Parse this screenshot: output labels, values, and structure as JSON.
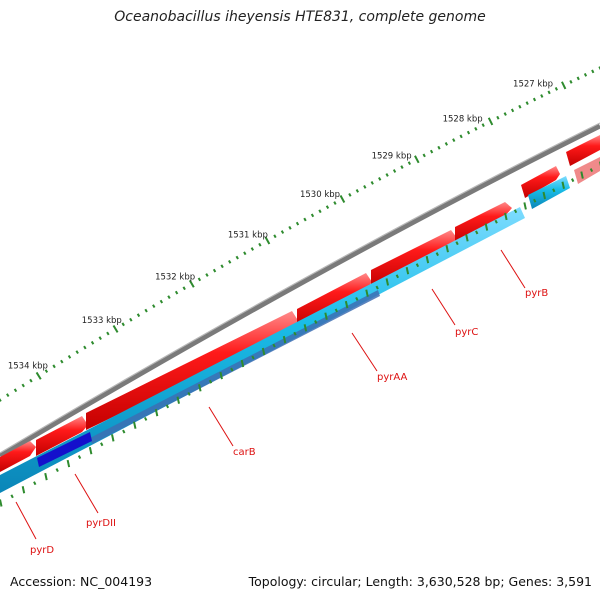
{
  "title": "Oceanobacillus iheyensis HTE831, complete genome",
  "footer": {
    "accession": "Accession: NC_004193",
    "summary": "Topology: circular; Length: 3,630,528 bp; Genes: 3,591"
  },
  "scale_labels": [
    "1527 kbp",
    "1528 kbp",
    "1529 kbp",
    "1530 kbp",
    "1531 kbp",
    "1532 kbp",
    "1533 kbp",
    "1534 kbp"
  ],
  "genes": [
    {
      "name": "pyrB",
      "strand": "forward"
    },
    {
      "name": "pyrC",
      "strand": "forward"
    },
    {
      "name": "pyrAA",
      "strand": "forward"
    },
    {
      "name": "carB",
      "strand": "forward"
    },
    {
      "name": "pyrDII",
      "strand": "forward"
    },
    {
      "name": "pyrD",
      "strand": "forward"
    }
  ],
  "colors": {
    "forward_cds": "#e80000",
    "reverse_cds": "#19b8e8",
    "overlap_cds": "#1410cc",
    "backbone": "#7a7a7a",
    "scale_ticks": "#2e8b2e",
    "gene_label": "#dd1111"
  }
}
